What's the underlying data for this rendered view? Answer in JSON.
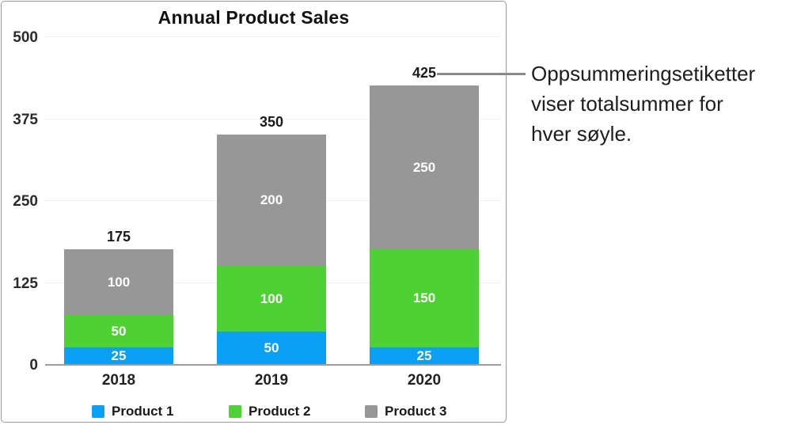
{
  "chart_data": {
    "type": "bar",
    "stacked": true,
    "title": "Annual Product Sales",
    "categories": [
      "2018",
      "2019",
      "2020"
    ],
    "series": [
      {
        "name": "Product 1",
        "color": "#0AA0F6",
        "values": [
          25,
          50,
          25
        ]
      },
      {
        "name": "Product 2",
        "color": "#4ED233",
        "values": [
          50,
          100,
          150
        ]
      },
      {
        "name": "Product 3",
        "color": "#979797",
        "values": [
          100,
          200,
          250
        ]
      }
    ],
    "totals": [
      175,
      350,
      425
    ],
    "y_ticks": [
      0,
      125,
      250,
      375,
      500
    ],
    "ylim": [
      0,
      500
    ],
    "grid": true,
    "legend_position": "bottom",
    "grid_color": "#efefef",
    "axis_color": "#9c9c9c",
    "value_label_color": "#ffffff"
  },
  "annotation": {
    "lines": [
      "Oppsummeringsetiketter",
      "viser totalsummer for",
      "hver søyle."
    ],
    "line_color": "#8a8a8a"
  }
}
